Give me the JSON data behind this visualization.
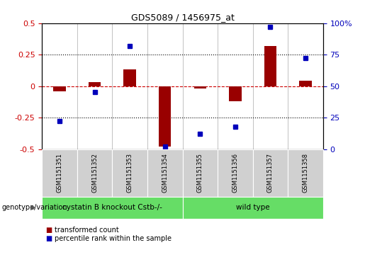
{
  "title": "GDS5089 / 1456975_at",
  "samples": [
    "GSM1151351",
    "GSM1151352",
    "GSM1151353",
    "GSM1151354",
    "GSM1151355",
    "GSM1151356",
    "GSM1151357",
    "GSM1151358"
  ],
  "red_values": [
    -0.04,
    0.03,
    0.13,
    -0.48,
    -0.02,
    -0.12,
    0.32,
    0.04
  ],
  "blue_values": [
    22,
    45,
    82,
    2,
    12,
    18,
    97,
    72
  ],
  "ylim_left": [
    -0.5,
    0.5
  ],
  "ylim_right": [
    0,
    100
  ],
  "yticks_left": [
    -0.5,
    -0.25,
    0.0,
    0.25,
    0.5
  ],
  "yticks_right": [
    0,
    25,
    50,
    75,
    100
  ],
  "ytick_labels_left": [
    "-0.5",
    "-0.25",
    "0",
    "0.25",
    "0.5"
  ],
  "ytick_labels_right": [
    "0",
    "25",
    "50",
    "75",
    "100%"
  ],
  "red_color": "#cc0000",
  "dark_red_color": "#990000",
  "blue_color": "#0000bb",
  "group1_label": "cystatin B knockout Cstb-/-",
  "group2_label": "wild type",
  "group_row_label": "genotype/variation",
  "legend_red": "transformed count",
  "legend_blue": "percentile rank within the sample",
  "green_color": "#66dd66",
  "gray_color": "#d0d0d0",
  "bar_width": 0.35,
  "n_group1": 4,
  "n_group2": 4
}
